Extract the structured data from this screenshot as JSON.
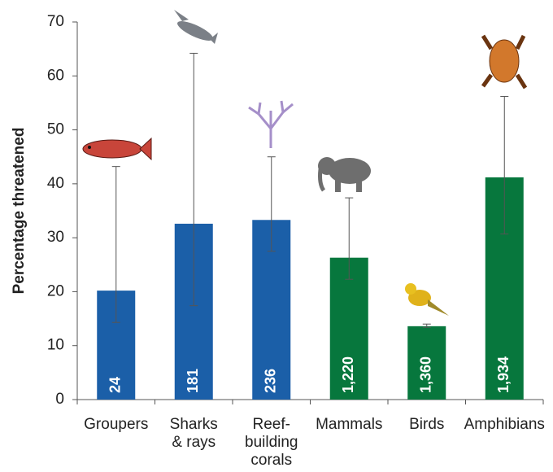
{
  "chart_data": {
    "type": "bar",
    "y_label": "Percentage threatened",
    "categories": [
      "Groupers",
      "Sharks\n& rays",
      "Reef-\nbuilding\ncorals",
      "Mammals",
      "Birds",
      "Amphibians"
    ],
    "values": [
      20.2,
      32.6,
      33.3,
      26.3,
      13.6,
      41.2
    ],
    "error_lower": [
      14.3,
      17.4,
      27.5,
      22.3,
      13.4,
      30.7
    ],
    "error_upper": [
      43.2,
      64.2,
      45.0,
      37.4,
      14.0,
      56.2
    ],
    "bar_labels": [
      "24",
      "181",
      "236",
      "1,220",
      "1,360",
      "1,934"
    ],
    "colors": [
      "#1b5fa8",
      "#1b5fa8",
      "#1b5fa8",
      "#07773d",
      "#07773d",
      "#07773d"
    ],
    "ylim": [
      0,
      70
    ],
    "yticks": [
      0,
      10,
      20,
      30,
      40,
      50,
      60,
      70
    ],
    "grid": false
  }
}
